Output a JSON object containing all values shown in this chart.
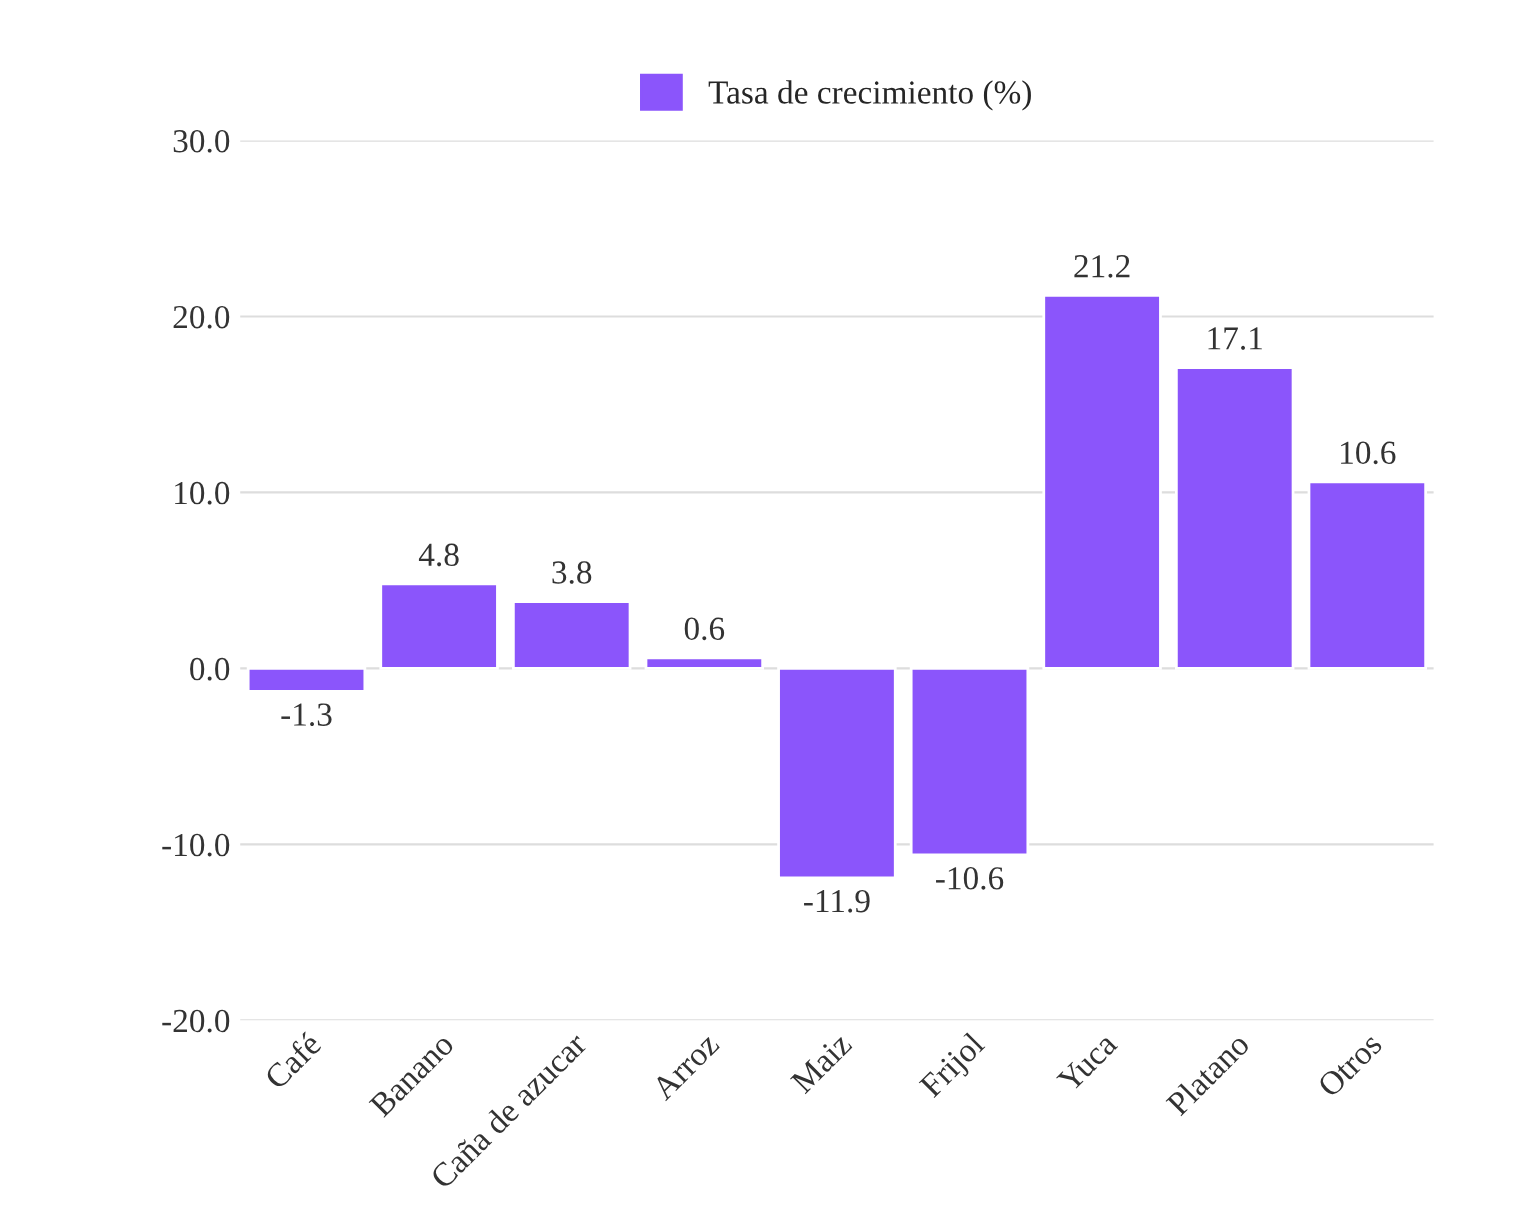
{
  "chart_data": {
    "type": "bar",
    "categories": [
      "Café",
      "Banano",
      "Caña de azucar",
      "Arroz",
      "Maiz",
      "Frijol",
      "Yuca",
      "Platano",
      "Otros"
    ],
    "series": [
      {
        "name": "Tasa de crecimiento (%)",
        "color": "#8b55fb",
        "values": [
          -1.3,
          4.8,
          3.8,
          0.6,
          -11.9,
          -10.6,
          21.2,
          17.1,
          10.6
        ]
      }
    ],
    "ylim": [
      -20,
      30
    ],
    "yticks": [
      {
        "value": -20,
        "label": "-20.0"
      },
      {
        "value": -10,
        "label": "-10.0"
      },
      {
        "value": 0,
        "label": "0.0"
      },
      {
        "value": 10,
        "label": "10.0"
      },
      {
        "value": 20,
        "label": "20.0"
      },
      {
        "value": 30,
        "label": "30.0"
      }
    ],
    "grid": "y",
    "legend": "top",
    "data_labels": true
  }
}
